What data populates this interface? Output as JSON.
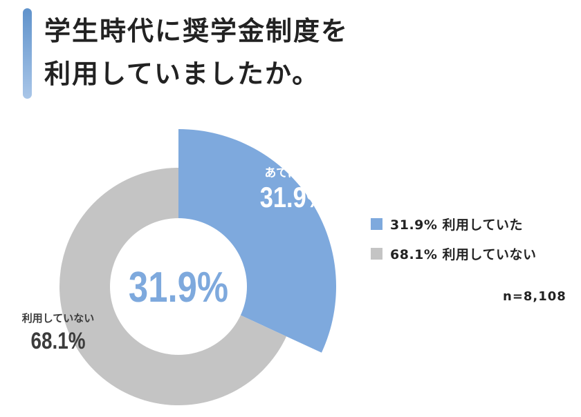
{
  "title": {
    "line1": "学生時代に奨学金制度を",
    "line2": "利用していましたか。"
  },
  "colors": {
    "accent": "#7ea9dd",
    "gray": "#c4c4c4",
    "title_bar_top": "#5f92cb",
    "title_bar_bottom": "#a9c6e8",
    "text_dark": "#222222",
    "text_gray": "#3c3c3c"
  },
  "chart_data": {
    "type": "pie",
    "variant": "donut",
    "center_label": "31.9%",
    "slices": [
      {
        "name": "利用していた",
        "value": 31.9,
        "color": "#7ea9dd",
        "slice_label": "あてはまる",
        "slice_value_label": "31.9%",
        "exploded": true
      },
      {
        "name": "利用していない",
        "value": 68.1,
        "color": "#c4c4c4",
        "slice_label": "利用していない",
        "slice_value_label": "68.1%",
        "exploded": false
      }
    ],
    "legend": {
      "placement": "right",
      "items": [
        {
          "label": "31.9% 利用していた",
          "color": "#7ea9dd"
        },
        {
          "label": "68.1% 利用していない",
          "color": "#c4c4c4"
        }
      ]
    },
    "sample_size": "n=8,108"
  }
}
